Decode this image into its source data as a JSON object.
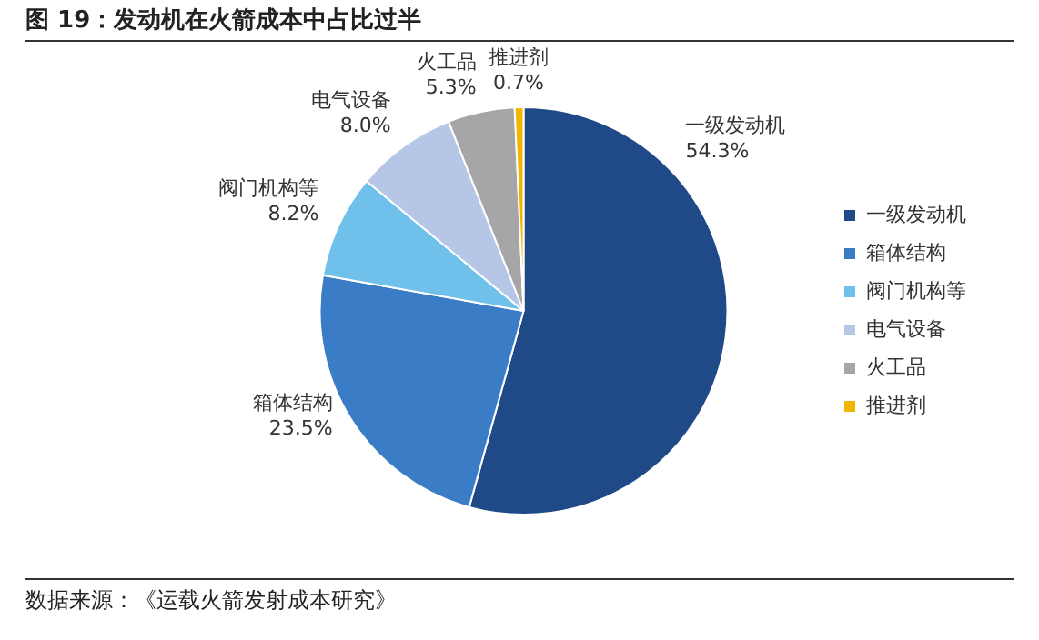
{
  "chart_data": {
    "type": "pie",
    "title": "图 19：发动机在火箭成本中占比过半",
    "categories": [
      "一级发动机",
      "箱体结构",
      "阀门机构等",
      "电气设备",
      "火工品",
      "推进剂"
    ],
    "values": [
      54.3,
      23.5,
      8.2,
      8.0,
      5.3,
      0.7
    ],
    "value_labels": [
      "54.3%",
      "23.5%",
      "8.2%",
      "8.0%",
      "5.3%",
      "0.7%"
    ],
    "colors": [
      "#1f4a87",
      "#3b7cc6",
      "#6fc0ea",
      "#b6c6e6",
      "#a6a6a6",
      "#f2b600"
    ],
    "legend": "right",
    "annotations": [
      "数据来源：《运载火箭发射成本研究》"
    ]
  }
}
